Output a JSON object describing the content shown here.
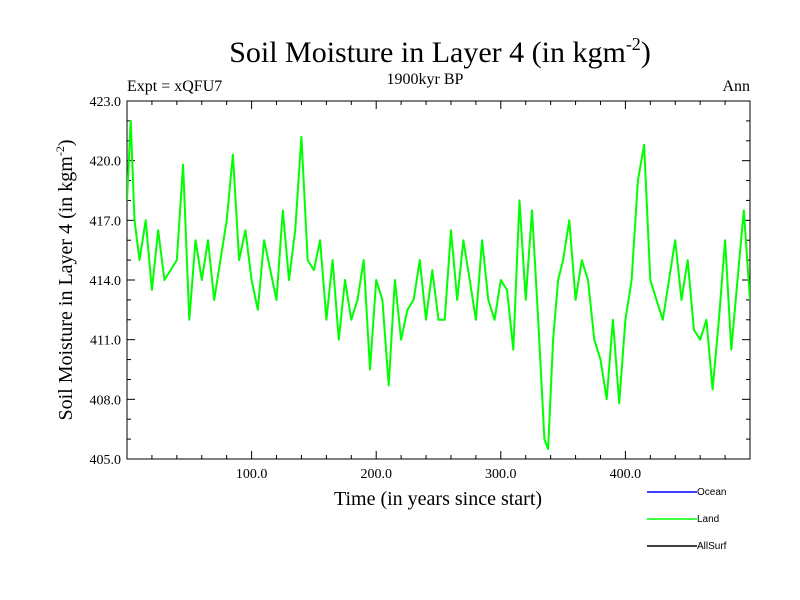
{
  "chart_data": {
    "type": "line",
    "title": {
      "prefix": "Soil Moisture in Layer 4 (in kgm",
      "exponent": "-2",
      "suffix": ")"
    },
    "subtitle": "1900kyr BP",
    "left_label": "Expt = xQFU7",
    "right_label": "Ann",
    "xlabel": "Time (in years since start)",
    "ylabel": {
      "prefix": "Soil Moisture in Layer 4 (in kgm",
      "exponent": "-2",
      "suffix": ")"
    },
    "xlim": [
      0,
      500
    ],
    "ylim": [
      405.0,
      423.0
    ],
    "x_ticks": [
      100,
      200,
      300,
      400
    ],
    "x_tick_labels": [
      "100.0",
      "200.0",
      "300.0",
      "400.0"
    ],
    "y_ticks": [
      405,
      408,
      411,
      414,
      417,
      420,
      423
    ],
    "y_tick_labels": [
      "405.0",
      "408.0",
      "411.0",
      "414.0",
      "417.0",
      "420.0",
      "423.0"
    ],
    "legend": {
      "placement": "bottom-right",
      "entries": [
        {
          "name": "Ocean",
          "color": "#0000ff"
        },
        {
          "name": "Land",
          "color": "#00ff00"
        },
        {
          "name": "AllSurf",
          "color": "#000000"
        }
      ]
    },
    "series": [
      {
        "name": "Land",
        "color": "#00ff00",
        "x": [
          0,
          3,
          6,
          10,
          15,
          20,
          25,
          30,
          35,
          40,
          45,
          50,
          55,
          60,
          65,
          70,
          75,
          80,
          85,
          90,
          95,
          100,
          105,
          110,
          115,
          120,
          125,
          130,
          135,
          140,
          145,
          150,
          155,
          160,
          165,
          170,
          175,
          180,
          185,
          190,
          195,
          200,
          205,
          210,
          215,
          220,
          225,
          230,
          235,
          240,
          245,
          250,
          255,
          260,
          265,
          270,
          275,
          280,
          285,
          290,
          295,
          300,
          305,
          310,
          315,
          320,
          325,
          330,
          335,
          338,
          342,
          346,
          350,
          355,
          360,
          365,
          370,
          375,
          380,
          385,
          390,
          395,
          400,
          405,
          410,
          415,
          420,
          425,
          430,
          435,
          440,
          445,
          450,
          455,
          460,
          465,
          470,
          475,
          480,
          485,
          490,
          495,
          500
        ],
        "values": [
          418.0,
          422.0,
          417.0,
          415.0,
          417.0,
          413.5,
          416.5,
          414.0,
          414.5,
          415.0,
          419.8,
          412.0,
          416.0,
          414.0,
          416.0,
          413.0,
          415.0,
          417.0,
          420.3,
          415.0,
          416.5,
          414.0,
          412.5,
          416.0,
          414.5,
          413.0,
          417.5,
          414.0,
          416.5,
          421.2,
          415.0,
          414.5,
          416.0,
          412.0,
          415.0,
          411.0,
          414.0,
          412.0,
          413.0,
          415.0,
          409.5,
          414.0,
          413.0,
          408.7,
          414.0,
          411.0,
          412.5,
          413.0,
          415.0,
          412.0,
          414.5,
          412.0,
          412.0,
          416.5,
          413.0,
          416.0,
          414.0,
          412.0,
          416.0,
          413.0,
          412.0,
          414.0,
          413.5,
          410.5,
          418.0,
          413.0,
          417.5,
          412.0,
          406.0,
          405.5,
          411.0,
          414.0,
          415.0,
          417.0,
          413.0,
          415.0,
          414.0,
          411.0,
          410.0,
          408.0,
          412.0,
          407.8,
          412.0,
          414.0,
          419.0,
          420.8,
          414.0,
          413.0,
          412.0,
          414.0,
          416.0,
          413.0,
          415.0,
          411.5,
          411.0,
          412.0,
          408.5,
          412.0,
          416.0,
          410.5,
          414.0,
          417.5,
          413.0
        ]
      }
    ]
  }
}
